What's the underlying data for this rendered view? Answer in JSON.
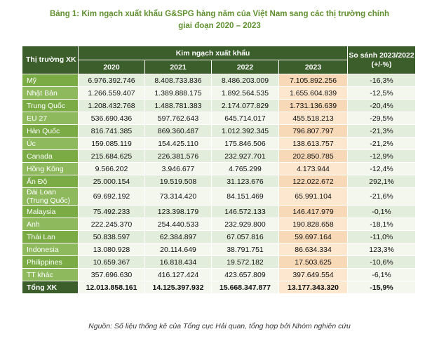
{
  "title": {
    "line1": "Bảng 1: Kim ngạch xuất khẩu G&SPG hàng năm của Việt Nam sang các thị trường chính",
    "line2": "giai đoạn 2020 – 2023"
  },
  "header": {
    "market": "Thị trường XK",
    "group": "Kim ngạch xuất khẩu",
    "years": [
      "2020",
      "2021",
      "2022",
      "2023"
    ],
    "compare": "So sánh 2023/2022 (+/-%)"
  },
  "rows": [
    {
      "market": "Mỹ",
      "v2020": "6.976.392.746",
      "v2021": "8.408.733.836",
      "v2022": "8.486.203.009",
      "v2023": "7.105.892.256",
      "compare": "-16,3%"
    },
    {
      "market": "Nhật Bản",
      "v2020": "1.266.559.407",
      "v2021": "1.389.888.175",
      "v2022": "1.892.564.535",
      "v2023": "1.655.604.839",
      "compare": "-12,5%"
    },
    {
      "market": "Trung Quốc",
      "v2020": "1.208.432.768",
      "v2021": "1.488.781.383",
      "v2022": "2.174.077.829",
      "v2023": "1.731.136.639",
      "compare": "-20,4%"
    },
    {
      "market": "EU 27",
      "v2020": "536.690.436",
      "v2021": "597.762.643",
      "v2022": "645.714.017",
      "v2023": "455.518.213",
      "compare": "-29,5%"
    },
    {
      "market": "Hàn Quốc",
      "v2020": "816.741.385",
      "v2021": "869.360.487",
      "v2022": "1.012.392.345",
      "v2023": "796.807.797",
      "compare": "-21,3%"
    },
    {
      "market": "Úc",
      "v2020": "159.085.119",
      "v2021": "154.425.110",
      "v2022": "175.846.506",
      "v2023": "138.613.757",
      "compare": "-21,2%"
    },
    {
      "market": "Canada",
      "v2020": "215.684.625",
      "v2021": "226.381.576",
      "v2022": "232.927.701",
      "v2023": "202.850.785",
      "compare": "-12,9%"
    },
    {
      "market": "Hồng Kông",
      "v2020": "9.566.202",
      "v2021": "3.946.677",
      "v2022": "4.765.299",
      "v2023": "4.173.944",
      "compare": "-12,4%"
    },
    {
      "market": "Ấn Độ",
      "v2020": "25.000.154",
      "v2021": "19.519.508",
      "v2022": "31.123.676",
      "v2023": "122.022.672",
      "compare": "292,1%"
    },
    {
      "market": "Đài Loan (Trung Quốc)",
      "v2020": "69.692.192",
      "v2021": "73.314.420",
      "v2022": "84.151.469",
      "v2023": "65.991.104",
      "compare": "-21,6%"
    },
    {
      "market": "Malaysia",
      "v2020": "75.492.233",
      "v2021": "123.398.179",
      "v2022": "146.572.133",
      "v2023": "146.417.979",
      "compare": "-0,1%"
    },
    {
      "market": "Anh",
      "v2020": "222.245.370",
      "v2021": "254.440.533",
      "v2022": "232.929.800",
      "v2023": "190.828.658",
      "compare": "-18,1%"
    },
    {
      "market": "Thái Lan",
      "v2020": "50.838.597",
      "v2021": "62.384.897",
      "v2022": "67.057.816",
      "v2023": "59.697.164",
      "compare": "-11,0%"
    },
    {
      "market": "Indonesia",
      "v2020": "13.080.928",
      "v2021": "20.114.649",
      "v2022": "38.791.751",
      "v2023": "86.634.334",
      "compare": "123,3%"
    },
    {
      "market": "Philippines",
      "v2020": "10.659.367",
      "v2021": "16.818.434",
      "v2022": "19.572.182",
      "v2023": "17.503.625",
      "compare": "-10,6%"
    },
    {
      "market": "TT khác",
      "v2020": "357.696.630",
      "v2021": "416.127.424",
      "v2022": "423.657.809",
      "v2023": "397.649.554",
      "compare": "-6,1%"
    }
  ],
  "total": {
    "market": "Tổng XK",
    "v2020": "12.013.858.161",
    "v2021": "14.125.397.932",
    "v2022": "15.668.347.877",
    "v2023": "13.177.343.320",
    "compare": "-15,9%"
  },
  "source": "Nguồn: Số liệu thống kê của Tổng cục Hải quan, tổng hợp bởi Nhóm nghiên cứu",
  "colors": {
    "header_dark": "#3b5e2b",
    "market_green": "#7aab45",
    "highlight_2023": "#fde8cf",
    "title_green": "#5f8f2e"
  }
}
